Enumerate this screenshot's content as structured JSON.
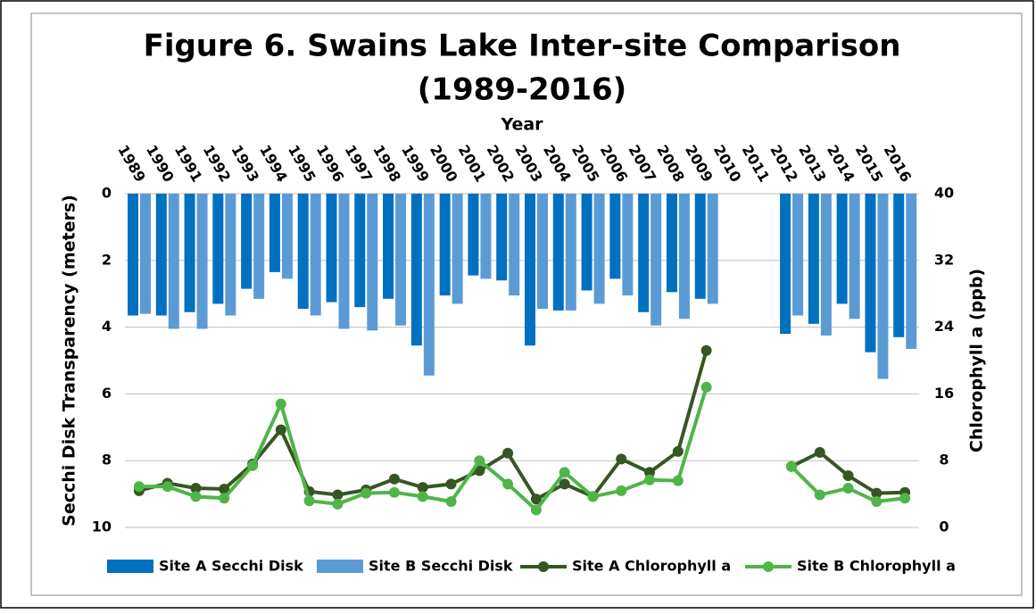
{
  "chart_data": {
    "type": "bar",
    "title": "Figure 6. Swains Lake Inter-site Comparison",
    "subtitle": "(1989-2016)",
    "x_label": "Year",
    "y_label": "Secchi Disk Transparency  (meters)",
    "y2_label": "Chlorophyll a (ppb)",
    "categories": [
      "1989",
      "1990",
      "1991",
      "1992",
      "1993",
      "1994",
      "1995",
      "1996",
      "1997",
      "1998",
      "1999",
      "2000",
      "2001",
      "2002",
      "2003",
      "2004",
      "2005",
      "2006",
      "2007",
      "2008",
      "2009",
      "2010",
      "2011",
      "2012",
      "2013",
      "2014",
      "2015",
      "2016"
    ],
    "ylim": [
      0,
      10
    ],
    "y_inverted": true,
    "yticks": [
      0,
      2,
      4,
      6,
      8,
      10
    ],
    "y2lim": [
      0,
      40
    ],
    "y2ticks": [
      0,
      8,
      16,
      24,
      32,
      40
    ],
    "grid": true,
    "legend": "bottom",
    "series": [
      {
        "name": "Site A Secchi Disk",
        "type": "bar",
        "color": "#0070c0",
        "axis": "y",
        "values": [
          3.65,
          3.65,
          3.55,
          3.3,
          2.85,
          2.35,
          3.45,
          3.25,
          3.4,
          3.15,
          4.55,
          3.05,
          2.45,
          2.6,
          4.55,
          3.5,
          2.9,
          2.55,
          3.55,
          2.95,
          3.15,
          null,
          null,
          4.2,
          3.9,
          3.3,
          4.75,
          4.3
        ]
      },
      {
        "name": "Site B Secchi Disk",
        "type": "bar",
        "color": "#5b9bd5",
        "axis": "y",
        "values": [
          3.6,
          4.05,
          4.05,
          3.65,
          3.15,
          2.55,
          3.65,
          4.05,
          4.1,
          3.95,
          5.45,
          3.3,
          2.55,
          3.05,
          3.45,
          3.5,
          3.3,
          3.05,
          3.95,
          3.75,
          3.3,
          null,
          null,
          3.65,
          4.25,
          3.75,
          5.55,
          4.65
        ]
      },
      {
        "name": "Site A Chlorophyll a",
        "type": "line",
        "color": "#375623",
        "axis": "y2",
        "values": [
          4.4,
          5.3,
          4.7,
          4.6,
          7.6,
          11.7,
          4.3,
          3.9,
          4.5,
          5.8,
          4.8,
          5.2,
          6.8,
          8.9,
          3.4,
          5.2,
          3.7,
          8.2,
          6.6,
          9.1,
          21.2,
          null,
          null,
          7.3,
          9.0,
          6.2,
          4.1,
          4.2
        ]
      },
      {
        "name": "Site B Chlorophyll a",
        "type": "line",
        "color": "#4fb548",
        "axis": "y2",
        "values": [
          4.9,
          4.9,
          3.7,
          3.5,
          7.4,
          14.8,
          3.2,
          2.8,
          4.1,
          4.2,
          3.7,
          3.1,
          8.0,
          5.2,
          2.1,
          6.6,
          3.7,
          4.4,
          5.7,
          5.6,
          16.8,
          null,
          null,
          7.3,
          3.9,
          4.7,
          3.1,
          3.5
        ]
      }
    ]
  }
}
